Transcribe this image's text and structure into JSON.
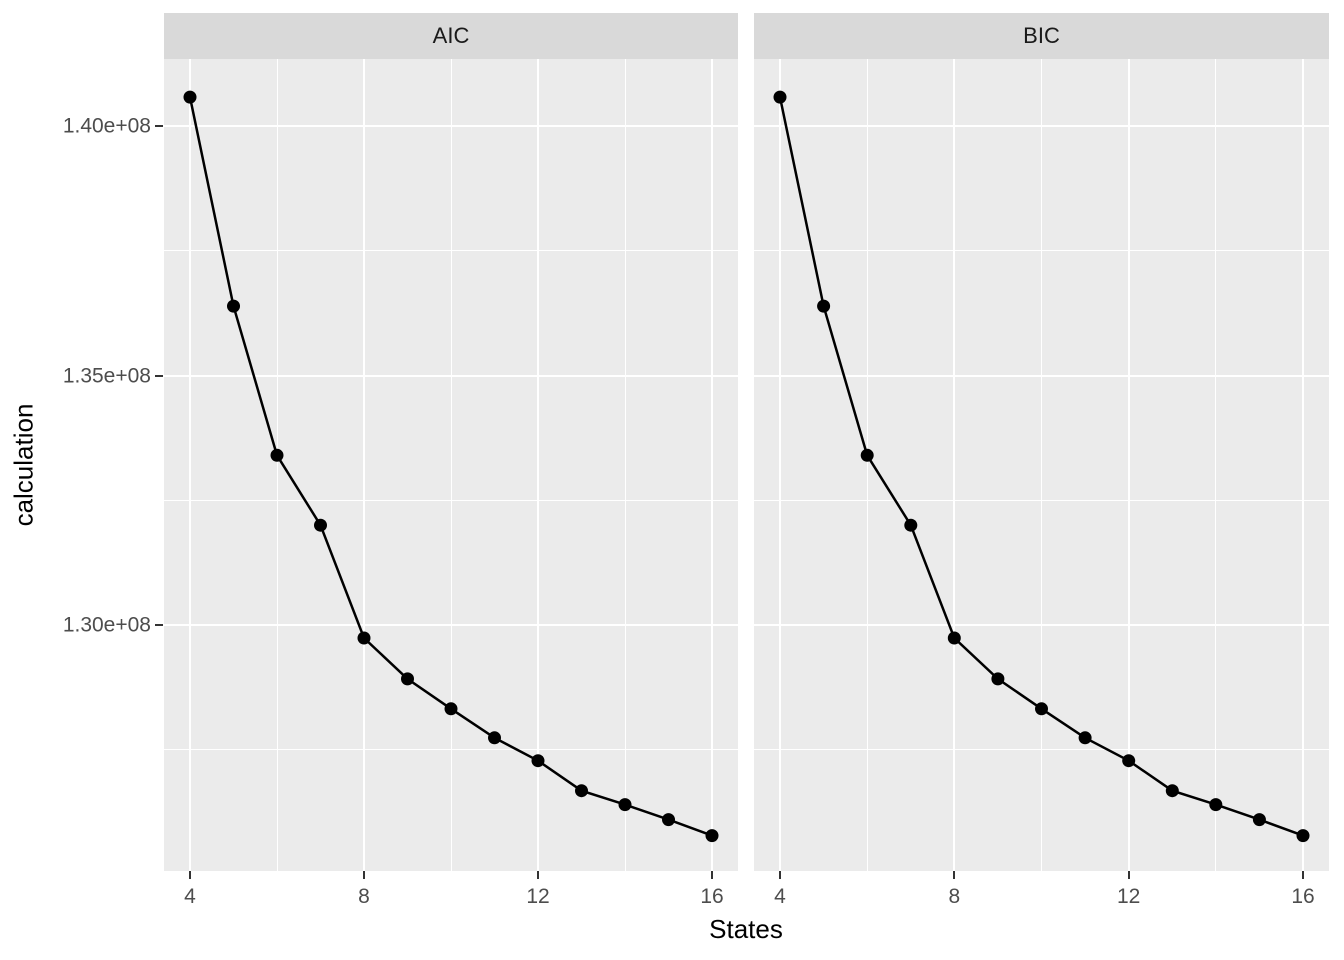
{
  "chart_data": {
    "type": "line",
    "xlabel": "States",
    "ylabel": "calculation",
    "facets": [
      {
        "label": "AIC",
        "x": [
          4,
          5,
          6,
          7,
          8,
          9,
          10,
          11,
          12,
          13,
          14,
          15,
          16
        ],
        "values": [
          140580000,
          136390000,
          133400000,
          132000000,
          129740000,
          128920000,
          128320000,
          127740000,
          127280000,
          126680000,
          126400000,
          126100000,
          125780000
        ]
      },
      {
        "label": "BIC",
        "x": [
          4,
          5,
          6,
          7,
          8,
          9,
          10,
          11,
          12,
          13,
          14,
          15,
          16
        ],
        "values": [
          140580000,
          136390000,
          133400000,
          132000000,
          129740000,
          128920000,
          128320000,
          127740000,
          127280000,
          126680000,
          126400000,
          126100000,
          125780000
        ]
      }
    ],
    "x_ticks": [
      {
        "label": "4",
        "value": 4
      },
      {
        "label": "8",
        "value": 8
      },
      {
        "label": "12",
        "value": 12
      },
      {
        "label": "16",
        "value": 16
      }
    ],
    "x_minor": [
      6,
      10,
      14
    ],
    "y_ticks": [
      {
        "label": "1.40e+08",
        "value": 140000000
      },
      {
        "label": "1.35e+08",
        "value": 135000000
      },
      {
        "label": "1.30e+08",
        "value": 130000000
      }
    ],
    "y_minor": [
      137500000,
      132500000,
      127500000
    ],
    "xlim": [
      3.4,
      16.6
    ],
    "ylim": [
      125080000,
      141330000
    ],
    "grid": true,
    "legend": false,
    "colors": {
      "point": "#000000",
      "line": "#000000",
      "panel_bg": "#EBEBEB",
      "strip_bg": "#D9D9D9",
      "grid": "#FFFFFF",
      "tick": "#333333",
      "tick_label": "#4D4D4D"
    }
  }
}
